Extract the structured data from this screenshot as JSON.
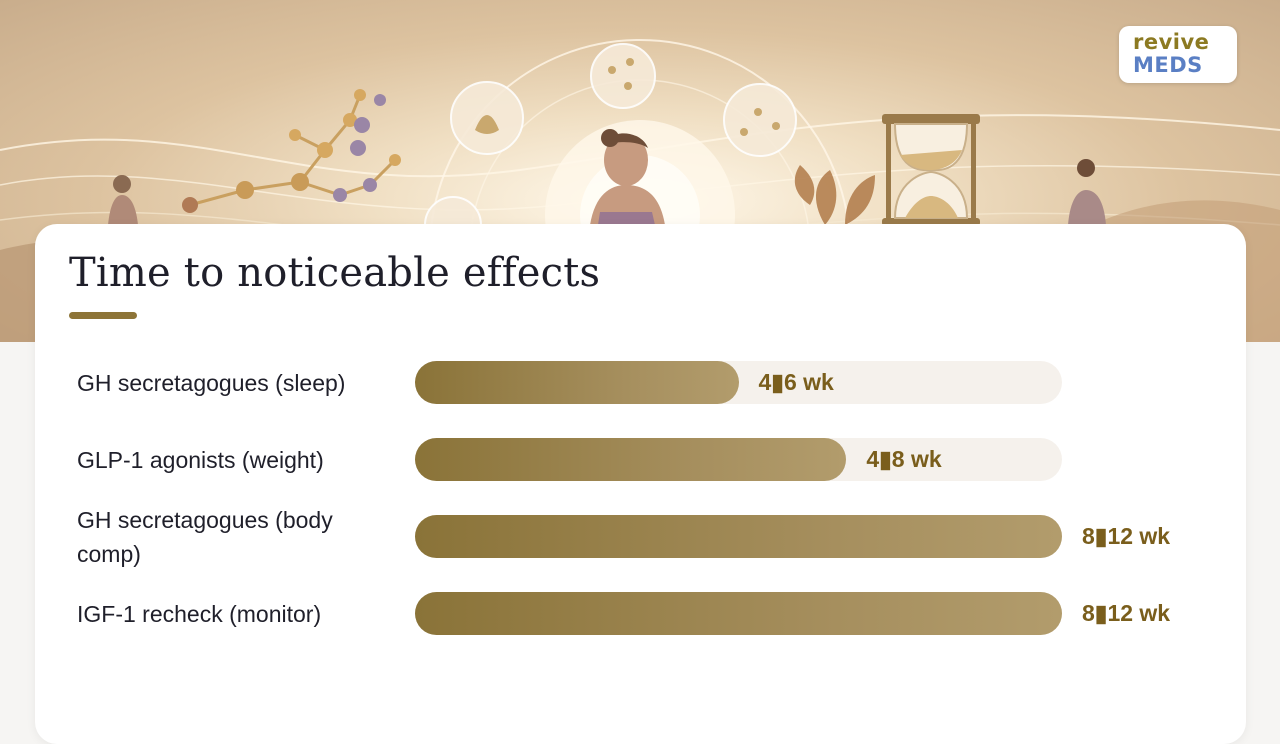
{
  "brand": {
    "line1": "revive",
    "line2": "MEDS"
  },
  "chart_data": {
    "type": "bar",
    "orientation": "horizontal",
    "title": "Time to noticeable effects",
    "xlim": [
      0,
      12
    ],
    "categories": [
      "GH secretagogues (sleep)",
      "GLP-1 agonists (weight)",
      "GH secretagogues (body comp)",
      "IGF-1 recheck (monitor)"
    ],
    "values": [
      6,
      8,
      12,
      12
    ],
    "value_labels": [
      "4▮6 wk",
      "4▮8 wk",
      "8▮12 wk",
      "8▮12 wk"
    ],
    "bar_color": "#9c8550",
    "track_color": "#f5f1ec"
  }
}
